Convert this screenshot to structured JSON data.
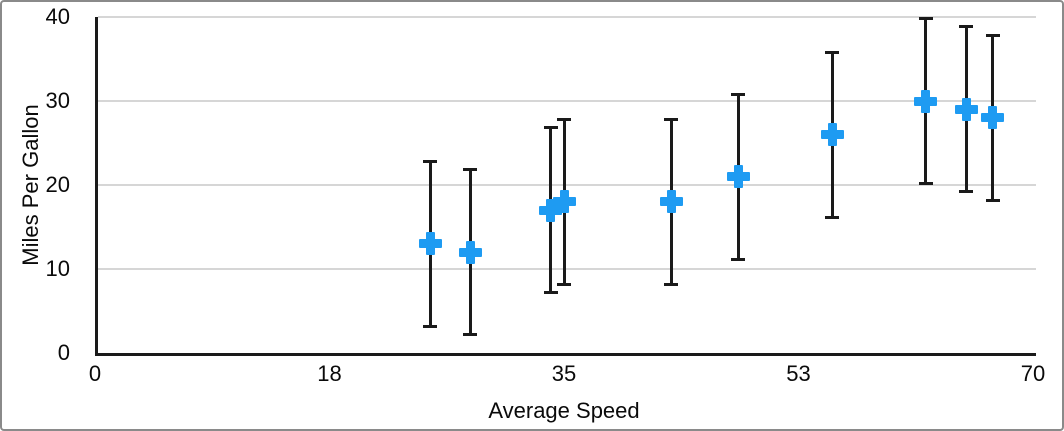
{
  "chart_data": {
    "type": "scatter",
    "title": "",
    "xlabel": "Average Speed",
    "ylabel": "Miles Per Gallon",
    "legend": "none",
    "grid": "horizontal",
    "x_axis": {
      "min": 0,
      "max": 70,
      "tick_positions": [
        0,
        17.5,
        35,
        52.5,
        70
      ],
      "tick_labels": [
        "0",
        "18",
        "35",
        "53",
        "70"
      ]
    },
    "y_axis": {
      "min": 0,
      "max": 40,
      "ticks": [
        0,
        10,
        20,
        30,
        40
      ],
      "gridlines": [
        10,
        20,
        30,
        40
      ]
    },
    "colors": {
      "marker": "#1E9BF2",
      "error_bar": "#1a1a1a",
      "axis": "#1a1a1a",
      "gridline": "#d6d6d6",
      "frame_border": "#8a8a8a"
    },
    "series": [
      {
        "name": "Miles Per Gallon",
        "marker_shape": "plus",
        "points": [
          {
            "x": 25,
            "y": 13,
            "error_plus": 10,
            "error_minus": 10
          },
          {
            "x": 28,
            "y": 12,
            "error_plus": 10,
            "error_minus": 10
          },
          {
            "x": 34,
            "y": 17,
            "error_plus": 10,
            "error_minus": 10
          },
          {
            "x": 35,
            "y": 18,
            "error_plus": 10,
            "error_minus": 10
          },
          {
            "x": 43,
            "y": 18,
            "error_plus": 10,
            "error_minus": 10
          },
          {
            "x": 48,
            "y": 21,
            "error_plus": 10,
            "error_minus": 10
          },
          {
            "x": 55,
            "y": 26,
            "error_plus": 10,
            "error_minus": 10
          },
          {
            "x": 62,
            "y": 30,
            "error_plus": 10,
            "error_minus": 10
          },
          {
            "x": 65,
            "y": 29,
            "error_plus": 10,
            "error_minus": 10
          },
          {
            "x": 67,
            "y": 28,
            "error_plus": 10,
            "error_minus": 10
          }
        ]
      }
    ]
  }
}
